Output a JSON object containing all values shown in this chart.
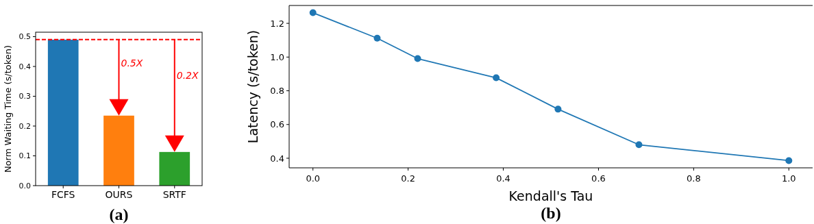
{
  "chart_data": [
    {
      "type": "bar",
      "title": "(a)",
      "ylabel": "Norm Waiting Time (s/token)",
      "categories": [
        "FCFS",
        "OURS",
        "SRTF"
      ],
      "values": [
        0.49,
        0.235,
        0.113
      ],
      "colors": [
        "#1f77b4",
        "#ff7f0e",
        "#2ca02c"
      ],
      "ylim": [
        0,
        0.515
      ],
      "yticks": [
        {
          "value": 0,
          "label": "0.0"
        },
        0.1,
        0.2,
        0.3,
        0.4,
        0.5
      ],
      "ref_lines": [
        {
          "axis": "y",
          "value": 0.49,
          "color": "#ff0000",
          "line_style": "dashed"
        }
      ],
      "annotations": [
        "0.5X",
        "0.2X"
      ]
    },
    {
      "type": "line",
      "title": "(b)",
      "xlabel": "Kendall's Tau",
      "ylabel": "Latency (s/token)",
      "x": [
        0.0,
        0.135,
        0.22,
        0.385,
        0.515,
        0.685,
        1.0
      ],
      "series": [
        {
          "color": "#1f77b4",
          "values": [
            1.263,
            1.112,
            0.991,
            0.877,
            0.691,
            0.48,
            0.386
          ]
        }
      ],
      "marker": "circle",
      "xlim": [
        -0.05,
        1.05
      ],
      "xticks": [
        {
          "value": 0,
          "label": "0.0"
        },
        0.2,
        0.4,
        0.6,
        0.8,
        {
          "value": 1,
          "label": "1.0"
        }
      ],
      "ylim": [
        0.343,
        1.306
      ],
      "yticks": [
        0.4,
        0.6,
        0.8,
        {
          "value": 1,
          "label": "1.0"
        },
        1.2
      ]
    }
  ]
}
